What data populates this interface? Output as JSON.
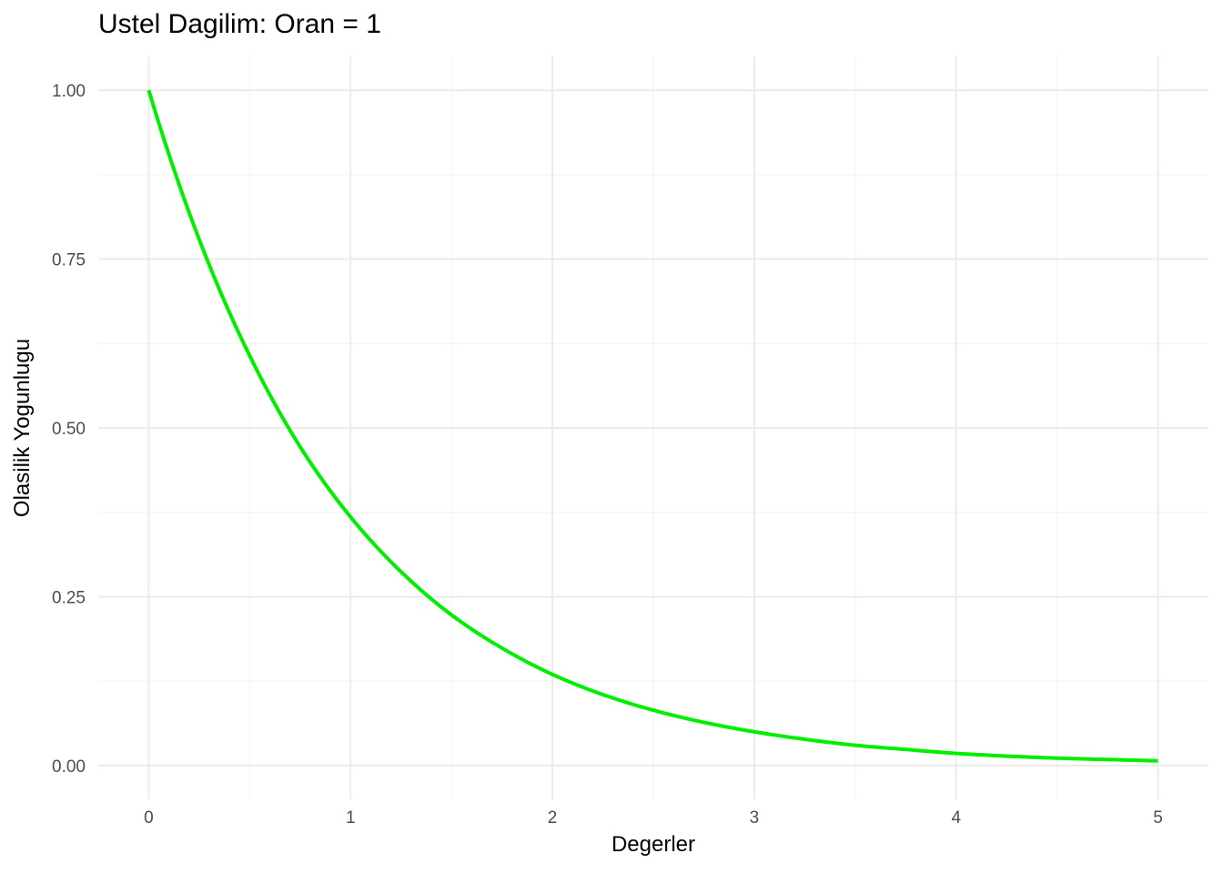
{
  "chart_data": {
    "type": "line",
    "title": "Ustel Dagilim: Oran = 1",
    "xlabel": "Degerler",
    "ylabel": "Olasilik Yogunlugu",
    "xlim": [
      -0.25,
      5.25
    ],
    "ylim": [
      -0.05,
      1.05
    ],
    "x_ticks": [
      0,
      1,
      2,
      3,
      4,
      5
    ],
    "x_tick_labels": [
      "0",
      "1",
      "2",
      "3",
      "4",
      "5"
    ],
    "y_ticks": [
      0,
      0.25,
      0.5,
      0.75,
      1
    ],
    "y_tick_labels": [
      "0.00",
      "0.25",
      "0.50",
      "0.75",
      "1.00"
    ],
    "grid": true,
    "legend": "none",
    "series": [
      {
        "color": "#00ee00",
        "x": [
          0,
          0.25,
          0.5,
          0.75,
          1,
          1.25,
          1.5,
          1.75,
          2,
          2.25,
          2.5,
          2.75,
          3,
          3.25,
          3.5,
          3.75,
          4,
          4.25,
          4.5,
          4.75,
          5
        ],
        "y": [
          1.0,
          0.779,
          0.607,
          0.472,
          0.368,
          0.287,
          0.223,
          0.174,
          0.135,
          0.105,
          0.082,
          0.064,
          0.05,
          0.039,
          0.03,
          0.024,
          0.018,
          0.014,
          0.011,
          0.009,
          0.007
        ]
      }
    ]
  }
}
